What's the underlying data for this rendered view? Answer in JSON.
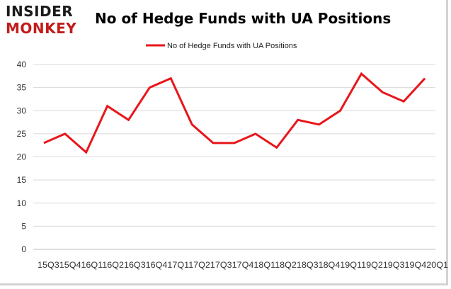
{
  "brand": {
    "logo_line1": "INSIDER",
    "logo_line2": "MONKEY",
    "colors": {
      "dark": "#1a1a1a",
      "red": "#c21c1c"
    }
  },
  "chart_data": {
    "type": "line",
    "title": "No of Hedge Funds with UA Positions",
    "categories": [
      "15Q3",
      "15Q4",
      "16Q1",
      "16Q2",
      "16Q3",
      "16Q4",
      "17Q1",
      "17Q2",
      "17Q3",
      "17Q4",
      "18Q1",
      "18Q2",
      "18Q3",
      "18Q4",
      "19Q1",
      "19Q2",
      "19Q3",
      "19Q4",
      "20Q1"
    ],
    "x_tick_text": "15Q315Q416Q116Q216Q316Q417Q117Q217Q317Q418Q118Q218Q318Q419Q119Q219Q319Q420Q1",
    "series": [
      {
        "name": "No of Hedge Funds with UA Positions",
        "color": "#e8161b",
        "values": [
          23,
          25,
          21,
          31,
          28,
          35,
          37,
          27,
          23,
          23,
          25,
          22,
          28,
          27,
          30,
          38,
          34,
          32,
          37
        ]
      }
    ],
    "ylim": [
      0,
      40
    ],
    "yticks": [
      0,
      5,
      10,
      15,
      20,
      25,
      30,
      35,
      40
    ],
    "xlabel": "",
    "ylabel": "",
    "grid": true,
    "legend_position": "top-center"
  }
}
